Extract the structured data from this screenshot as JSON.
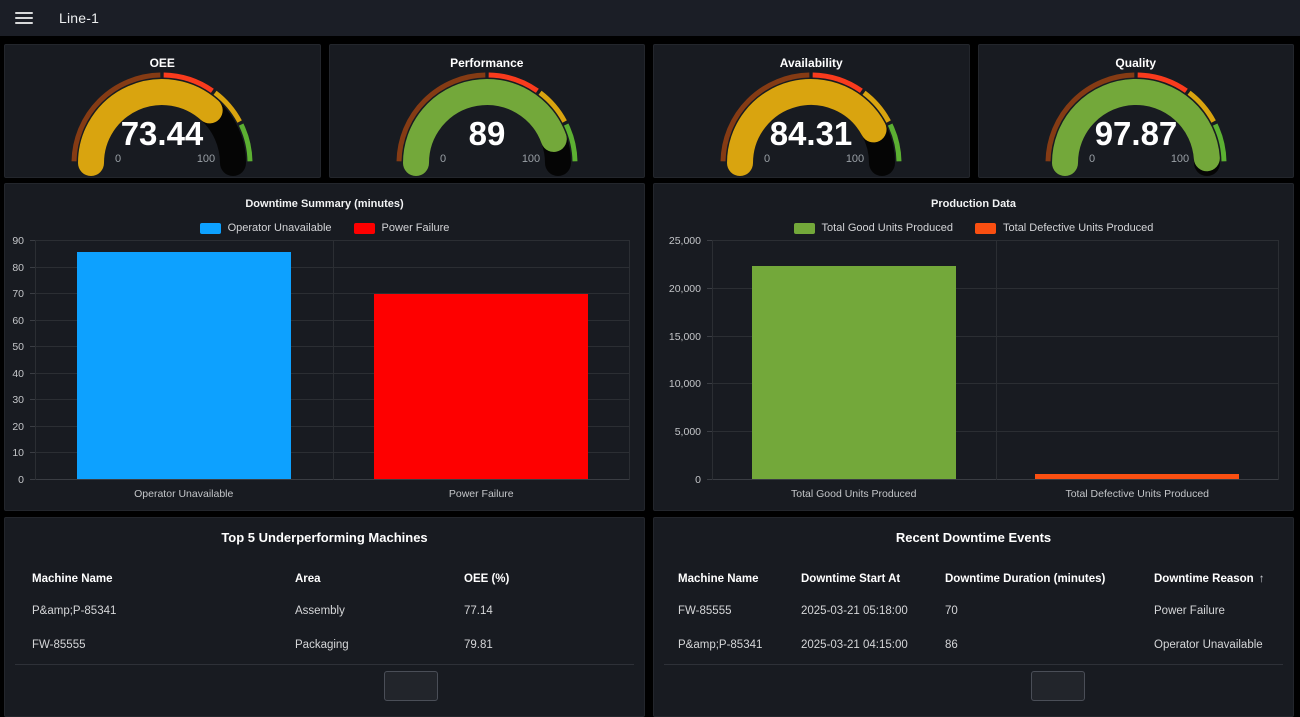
{
  "topbar": {
    "title": "Line-1"
  },
  "gauges": {
    "min_label": "0",
    "max_label": "100",
    "thresholds": [
      {
        "from": 0,
        "to": 50,
        "color": "#853b14"
      },
      {
        "from": 50,
        "to": 70,
        "color": "#f93b1d"
      },
      {
        "from": 70,
        "to": 85,
        "color": "#d9a40f"
      },
      {
        "from": 85,
        "to": 100,
        "color": "#5cb032"
      }
    ],
    "remainder_color": "#050505",
    "items": [
      {
        "title": "OEE",
        "value": "73.44",
        "numeric": 73.44,
        "color": "#d9a40f"
      },
      {
        "title": "Performance",
        "value": "89",
        "numeric": 89,
        "color": "#73a83a"
      },
      {
        "title": "Availability",
        "value": "84.31",
        "numeric": 84.31,
        "color": "#d9a40f"
      },
      {
        "title": "Quality",
        "value": "97.87",
        "numeric": 97.87,
        "color": "#73a83a"
      }
    ]
  },
  "chart_data": [
    {
      "type": "bar",
      "title": "Downtime Summary (minutes)",
      "categories": [
        "Operator Unavailable",
        "Power Failure"
      ],
      "values": [
        86,
        70
      ],
      "bar_colors": [
        "#0da1ff",
        "#fe0000"
      ],
      "legend": [
        {
          "label": "Operator Unavailable",
          "color": "#0da1ff"
        },
        {
          "label": "Power Failure",
          "color": "#fe0000"
        }
      ],
      "legend_position": "top",
      "grid": true,
      "xlabel": "",
      "ylabel": "",
      "ylim": [
        0,
        90
      ],
      "yticks": [
        0,
        10,
        20,
        30,
        40,
        50,
        60,
        70,
        80,
        90
      ],
      "ytick_labels": [
        "0",
        "10",
        "20",
        "30",
        "40",
        "50",
        "60",
        "70",
        "80",
        "90"
      ]
    },
    {
      "type": "bar",
      "title": "Production Data",
      "categories": [
        "Total Good Units Produced",
        "Total Defective Units Produced"
      ],
      "values": [
        22400,
        600
      ],
      "bar_colors": [
        "#73a83a",
        "#fa4f11"
      ],
      "legend": [
        {
          "label": "Total Good Units Produced",
          "color": "#73a83a"
        },
        {
          "label": "Total Defective Units Produced",
          "color": "#fa4f11"
        }
      ],
      "legend_position": "top",
      "grid": true,
      "xlabel": "",
      "ylabel": "",
      "ylim": [
        0,
        25000
      ],
      "yticks": [
        0,
        5000,
        10000,
        15000,
        20000,
        25000
      ],
      "ytick_labels": [
        "0",
        "5,000",
        "10,000",
        "15,000",
        "20,000",
        "25,000"
      ]
    }
  ],
  "tables": [
    {
      "title": "Top 5 Underperforming Machines",
      "columns": [
        "Machine Name",
        "Area",
        "OEE (%)"
      ],
      "rows": [
        [
          "P&amp;P-85341",
          "Assembly",
          "77.14"
        ],
        [
          "FW-85555",
          "Packaging",
          "79.81"
        ]
      ]
    },
    {
      "title": "Recent Downtime Events",
      "columns": [
        "Machine Name",
        "Downtime Start At",
        "Downtime Duration (minutes)",
        "Downtime Reason"
      ],
      "sorted_column": 3,
      "sort_arrow": "↑",
      "rows": [
        [
          "FW-85555",
          "2025-03-21 05:18:00",
          "70",
          "Power Failure"
        ],
        [
          "P&amp;P-85341",
          "2025-03-21 04:15:00",
          "86",
          "Operator Unavailable"
        ]
      ]
    }
  ]
}
